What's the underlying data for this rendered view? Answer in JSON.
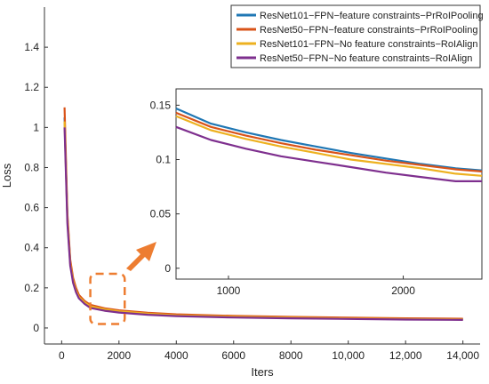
{
  "chart_data": [
    {
      "id": "main",
      "type": "line",
      "xlabel": "Iters",
      "ylabel": "Loss",
      "xlim": [
        -600,
        14600
      ],
      "ylim": [
        -0.08,
        1.6
      ],
      "x_ticks": [
        0,
        2000,
        4000,
        6000,
        8000,
        10000,
        12000,
        14000
      ],
      "x_tick_labels": [
        "0",
        "2000",
        "4000",
        "6000",
        "8000",
        "10,000",
        "12,000",
        "14,000"
      ],
      "y_ticks": [
        0,
        0.2,
        0.4,
        0.6,
        0.8,
        1,
        1.2,
        1.4
      ],
      "y_tick_labels": [
        "0",
        "0.2",
        "0.4",
        "0.6",
        "0.8",
        "1",
        "1.2",
        "1.4"
      ],
      "grid": false,
      "legend_position": "top-right",
      "series": [
        {
          "name": "ResNet101−FPN−feature constraints−PrRoIPooling",
          "color": "#1f77b4",
          "x": [
            100,
            200,
            300,
            400,
            500,
            600,
            800,
            1000,
            1500,
            2000,
            3000,
            4000,
            6000,
            8000,
            10000,
            12000,
            14000
          ],
          "y": [
            1.05,
            0.55,
            0.33,
            0.24,
            0.19,
            0.16,
            0.13,
            0.11,
            0.095,
            0.085,
            0.073,
            0.065,
            0.058,
            0.053,
            0.049,
            0.046,
            0.044
          ]
        },
        {
          "name": "ResNet50−FPN−feature constraints−PrRoIPooling",
          "color": "#d95319",
          "x": [
            100,
            200,
            300,
            400,
            500,
            600,
            800,
            1000,
            1500,
            2000,
            3000,
            4000,
            6000,
            8000,
            10000,
            12000,
            14000
          ],
          "y": [
            1.1,
            0.57,
            0.34,
            0.25,
            0.2,
            0.165,
            0.135,
            0.115,
            0.098,
            0.088,
            0.076,
            0.068,
            0.06,
            0.055,
            0.051,
            0.048,
            0.046
          ]
        },
        {
          "name": "ResNet101−FPN−No feature constraints−RoIAlign",
          "color": "#edb120",
          "x": [
            100,
            200,
            300,
            400,
            500,
            600,
            800,
            1000,
            1500,
            2000,
            3000,
            4000,
            6000,
            8000,
            10000,
            12000,
            14000
          ],
          "y": [
            1.03,
            0.54,
            0.32,
            0.235,
            0.185,
            0.155,
            0.128,
            0.108,
            0.093,
            0.083,
            0.071,
            0.063,
            0.056,
            0.051,
            0.047,
            0.044,
            0.042
          ]
        },
        {
          "name": "ResNet50−FPN−No feature constraints−RoIAlign",
          "color": "#7e2f8e",
          "x": [
            100,
            200,
            300,
            400,
            500,
            600,
            800,
            1000,
            1500,
            2000,
            3000,
            4000,
            6000,
            8000,
            10000,
            12000,
            14000
          ],
          "y": [
            1.0,
            0.52,
            0.31,
            0.225,
            0.178,
            0.148,
            0.12,
            0.1,
            0.086,
            0.077,
            0.066,
            0.059,
            0.052,
            0.048,
            0.045,
            0.042,
            0.04
          ]
        }
      ]
    },
    {
      "id": "inset",
      "type": "line",
      "xlabel": "",
      "ylabel": "",
      "xlim": [
        700,
        2450
      ],
      "ylim": [
        -0.01,
        0.165
      ],
      "x_ticks": [
        1000,
        2000
      ],
      "x_tick_labels": [
        "1000",
        "2000"
      ],
      "y_ticks": [
        0,
        0.05,
        0.1,
        0.15
      ],
      "y_tick_labels": [
        "0",
        "0.05",
        "0.1",
        "0.15"
      ],
      "grid": false,
      "series": [
        {
          "name": "ResNet101−FPN−feature constraints−PrRoIPooling",
          "color": "#1f77b4",
          "x": [
            700,
            900,
            1100,
            1300,
            1500,
            1700,
            1900,
            2100,
            2300,
            2450
          ],
          "y": [
            0.147,
            0.133,
            0.125,
            0.118,
            0.112,
            0.106,
            0.101,
            0.096,
            0.092,
            0.09
          ]
        },
        {
          "name": "ResNet50−FPN−feature constraints−PrRoIPooling",
          "color": "#d95319",
          "x": [
            700,
            900,
            1100,
            1300,
            1500,
            1700,
            1900,
            2100,
            2300,
            2450
          ],
          "y": [
            0.143,
            0.13,
            0.122,
            0.115,
            0.109,
            0.104,
            0.099,
            0.095,
            0.091,
            0.089
          ]
        },
        {
          "name": "ResNet101−FPN−No feature constraints−RoIAlign",
          "color": "#edb120",
          "x": [
            700,
            900,
            1100,
            1300,
            1500,
            1700,
            1900,
            2100,
            2300,
            2450
          ],
          "y": [
            0.14,
            0.127,
            0.119,
            0.112,
            0.106,
            0.1,
            0.096,
            0.092,
            0.087,
            0.085
          ]
        },
        {
          "name": "ResNet50−FPN−No feature constraints−RoIAlign",
          "color": "#7e2f8e",
          "x": [
            700,
            900,
            1100,
            1300,
            1500,
            1700,
            1900,
            2100,
            2300,
            2450
          ],
          "y": [
            0.13,
            0.118,
            0.11,
            0.103,
            0.098,
            0.093,
            0.088,
            0.084,
            0.08,
            0.08
          ]
        }
      ]
    }
  ],
  "callout": {
    "highlight_color": "#ed7d31",
    "arrow_color": "#ed7d31"
  }
}
